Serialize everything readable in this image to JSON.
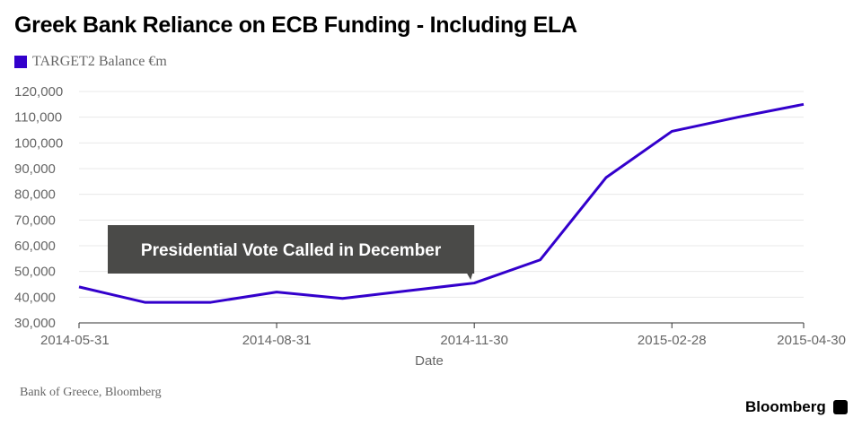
{
  "chart_data": {
    "type": "line",
    "title": "Greek Bank Reliance on ECB Funding - Including ELA",
    "xlabel": "Date",
    "ylabel": "",
    "ylim": [
      30000,
      120000
    ],
    "yticks": [
      "30,000",
      "40,000",
      "50,000",
      "60,000",
      "70,000",
      "80,000",
      "90,000",
      "100,000",
      "110,000",
      "120,000"
    ],
    "xticks": [
      {
        "label": "2014-05-31",
        "index": 0
      },
      {
        "label": "2014-08-31",
        "index": 3
      },
      {
        "label": "2014-11-30",
        "index": 6
      },
      {
        "label": "2015-02-28",
        "index": 9
      },
      {
        "label": "2015-04-30",
        "index": 11
      }
    ],
    "grid": true,
    "legend_position": "top-left",
    "series": [
      {
        "name": "TARGET2 Balance €m",
        "color": "#3300cc",
        "x": [
          "2014-05-31",
          "2014-06-30",
          "2014-07-31",
          "2014-08-31",
          "2014-09-30",
          "2014-10-31",
          "2014-11-30",
          "2014-12-31",
          "2015-01-31",
          "2015-02-28",
          "2015-03-31",
          "2015-04-30"
        ],
        "values": [
          44000,
          38000,
          38000,
          42000,
          39500,
          42500,
          45500,
          54500,
          86500,
          104500,
          110000,
          115000
        ]
      }
    ],
    "annotations": [
      {
        "text": "Presidential Vote Called in December",
        "x": "2014-11-30"
      }
    ]
  },
  "source": "Bank of Greece, Bloomberg",
  "brand": "Bloomberg"
}
